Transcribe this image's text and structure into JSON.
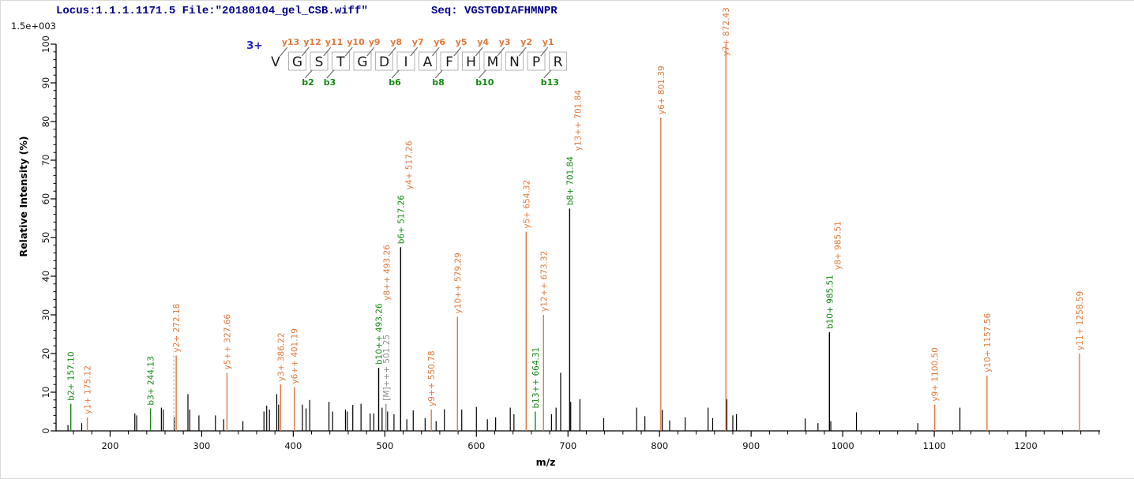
{
  "header": {
    "locus_file": "Locus:1.1.1.1171.5 File:\"20180104_gel_CSB.wiff\"",
    "seq_label": "Seq: VGSTGDIAFHMNPR",
    "max_intensity": "1.5e+003"
  },
  "sequence": {
    "charge": "3+",
    "residues": [
      "V",
      "G",
      "S",
      "T",
      "G",
      "D",
      "I",
      "A",
      "F",
      "H",
      "M",
      "N",
      "P",
      "R"
    ],
    "gaps": [
      {
        "y": "y13",
        "b": null
      },
      {
        "y": "y12",
        "b": "b2"
      },
      {
        "y": "y11",
        "b": "b3"
      },
      {
        "y": "y10",
        "b": null
      },
      {
        "y": "y9",
        "b": null
      },
      {
        "y": "y8",
        "b": "b6"
      },
      {
        "y": "y7",
        "b": null
      },
      {
        "y": "y6",
        "b": "b8"
      },
      {
        "y": "y5",
        "b": null
      },
      {
        "y": "y4",
        "b": "b10"
      },
      {
        "y": "y3",
        "b": null
      },
      {
        "y": "y2",
        "b": null
      },
      {
        "y": "y1",
        "b": "b13"
      }
    ]
  },
  "chart_data": {
    "type": "bar",
    "subtype": "ms2-fragment-spectrum",
    "title": "",
    "xlabel": "m/z",
    "ylabel": "Relative  Intensity (%)",
    "xlim": [
      141,
      1281
    ],
    "ylim": [
      0,
      100
    ],
    "grid": false,
    "x_major_ticks": [
      200,
      300,
      400,
      500,
      600,
      700,
      800,
      900,
      1000,
      1100,
      1200
    ],
    "x_minor_step": 20,
    "y_major_ticks": [
      0,
      10,
      20,
      30,
      40,
      50,
      60,
      70,
      80,
      90,
      100
    ],
    "y_minor_step": 2,
    "colors": {
      "y_ion": "#E0793B",
      "b_ion": "#138813",
      "neutral": "#8C8C8C",
      "peak": "#000000",
      "accent_blue": "#2323CE",
      "header_navy": "#00008B"
    },
    "peaks": [
      {
        "mz": 157.1,
        "intensity": 7.0,
        "line": "b_ion",
        "labels": [
          {
            "text": "b2+ 157.10",
            "color": "b_ion"
          }
        ]
      },
      {
        "mz": 175.12,
        "intensity": 3.5,
        "line": "y_ion",
        "labels": [
          {
            "text": "y1+ 175.12",
            "color": "y_ion"
          }
        ]
      },
      {
        "mz": 244.13,
        "intensity": 5.8,
        "line": "b_ion",
        "labels": [
          {
            "text": "b3+ 244.13",
            "color": "b_ion"
          }
        ]
      },
      {
        "mz": 272.18,
        "intensity": 19.5,
        "line": "y_ion",
        "dashed_marker": true,
        "labels": [
          {
            "text": "y2+ 272.18",
            "color": "y_ion"
          }
        ]
      },
      {
        "mz": 327.66,
        "intensity": 15.0,
        "line": "y_ion",
        "labels": [
          {
            "text": "y5++ 327.66",
            "color": "y_ion"
          }
        ]
      },
      {
        "mz": 386.22,
        "intensity": 12.0,
        "line": "y_ion",
        "labels": [
          {
            "text": "y3+ 386.22",
            "color": "y_ion"
          }
        ]
      },
      {
        "mz": 401.19,
        "intensity": 11.3,
        "line": "y_ion",
        "labels": [
          {
            "text": "y6++ 401.19",
            "color": "y_ion"
          }
        ]
      },
      {
        "mz": 493.26,
        "intensity": 16.3,
        "line": "peak",
        "labels": [
          {
            "text": "b10++ 493.26",
            "color": "b_ion"
          },
          {
            "text": "y8++ 493.26",
            "color": "y_ion"
          }
        ]
      },
      {
        "mz": 501.25,
        "intensity": 7.0,
        "line": "neutral",
        "labels": [
          {
            "text": "[M]+++ 501.25",
            "color": "neutral"
          }
        ]
      },
      {
        "mz": 517.26,
        "intensity": 47.5,
        "line": "peak",
        "labels": [
          {
            "text": "b6+ 517.26",
            "color": "b_ion"
          },
          {
            "text": "y4+ 517.26",
            "color": "y_ion"
          }
        ]
      },
      {
        "mz": 550.78,
        "intensity": 5.5,
        "line": "y_ion",
        "labels": [
          {
            "text": "y9++ 550.78",
            "color": "y_ion"
          }
        ]
      },
      {
        "mz": 579.29,
        "intensity": 29.5,
        "line": "y_ion",
        "labels": [
          {
            "text": "y10++ 579.29",
            "color": "y_ion"
          }
        ]
      },
      {
        "mz": 654.32,
        "intensity": 51.5,
        "line": "y_ion",
        "labels": [
          {
            "text": "y5+ 654.32",
            "color": "y_ion"
          }
        ]
      },
      {
        "mz": 664.31,
        "intensity": 5.0,
        "line": "b_ion",
        "labels": [
          {
            "text": "b13++ 664.31",
            "color": "b_ion"
          }
        ]
      },
      {
        "mz": 673.32,
        "intensity": 30.0,
        "line": "y_ion",
        "labels": [
          {
            "text": "y12++ 673.32",
            "color": "y_ion"
          }
        ]
      },
      {
        "mz": 701.84,
        "intensity": 57.5,
        "line": "peak",
        "labels": [
          {
            "text": "b8+ 701.84",
            "color": "b_ion"
          },
          {
            "text": "y13++ 701.84",
            "color": "y_ion"
          }
        ]
      },
      {
        "mz": 801.39,
        "intensity": 81.0,
        "line": "y_ion",
        "labels": [
          {
            "text": "y6+ 801.39",
            "color": "y_ion"
          }
        ]
      },
      {
        "mz": 872.43,
        "intensity": 100.0,
        "line": "y_ion",
        "labels": [
          {
            "text": "y7+ 872.43",
            "color": "y_ion"
          }
        ]
      },
      {
        "mz": 985.51,
        "intensity": 25.5,
        "line": "peak",
        "labels": [
          {
            "text": "b10+ 985.51",
            "color": "b_ion"
          },
          {
            "text": "y8+ 985.51",
            "color": "y_ion"
          }
        ]
      },
      {
        "mz": 1100.5,
        "intensity": 6.8,
        "line": "y_ion",
        "labels": [
          {
            "text": "y9+ 1100.50",
            "color": "y_ion"
          }
        ]
      },
      {
        "mz": 1157.56,
        "intensity": 14.3,
        "line": "y_ion",
        "labels": [
          {
            "text": "y10+ 1157.56",
            "color": "y_ion"
          }
        ]
      },
      {
        "mz": 1258.59,
        "intensity": 20.0,
        "line": "y_ion",
        "labels": [
          {
            "text": "y11+ 1258.59",
            "color": "y_ion"
          }
        ]
      }
    ],
    "background_peaks": [
      [
        154,
        1.5
      ],
      [
        169,
        2
      ],
      [
        227,
        4.5
      ],
      [
        229,
        4
      ],
      [
        256,
        6
      ],
      [
        258,
        5.5
      ],
      [
        270,
        3.5
      ],
      [
        285,
        9.5
      ],
      [
        287,
        5.5
      ],
      [
        297,
        4
      ],
      [
        315,
        4
      ],
      [
        324,
        3
      ],
      [
        345,
        2.5
      ],
      [
        368,
        5
      ],
      [
        371,
        6.5
      ],
      [
        374,
        5.5
      ],
      [
        382,
        9.5
      ],
      [
        384,
        6.8
      ],
      [
        410,
        6.8
      ],
      [
        414,
        5.8
      ],
      [
        418,
        8
      ],
      [
        439,
        7.5
      ],
      [
        443,
        5
      ],
      [
        457,
        5.5
      ],
      [
        459,
        5
      ],
      [
        465,
        6.7
      ],
      [
        474,
        7
      ],
      [
        484,
        4.5
      ],
      [
        488,
        4.5
      ],
      [
        497,
        6
      ],
      [
        503,
        5
      ],
      [
        510,
        4.3
      ],
      [
        524,
        3
      ],
      [
        531,
        5.3
      ],
      [
        544,
        3.3
      ],
      [
        556,
        2.5
      ],
      [
        565,
        5.6
      ],
      [
        584,
        5.5
      ],
      [
        600,
        6.2
      ],
      [
        612,
        3
      ],
      [
        621,
        3.5
      ],
      [
        637,
        6
      ],
      [
        641,
        4.3
      ],
      [
        682,
        4.3
      ],
      [
        687,
        6
      ],
      [
        692,
        15
      ],
      [
        703,
        7.5
      ],
      [
        713,
        8.2
      ],
      [
        739,
        3.3
      ],
      [
        775,
        6
      ],
      [
        784,
        3.8
      ],
      [
        803,
        5.4
      ],
      [
        811,
        2.7
      ],
      [
        828,
        3.5
      ],
      [
        853,
        6
      ],
      [
        858,
        3.3
      ],
      [
        873.5,
        8.2
      ],
      [
        880,
        4
      ],
      [
        884,
        4.3
      ],
      [
        959,
        3.2
      ],
      [
        973,
        2
      ],
      [
        987,
        2.5
      ],
      [
        1015,
        4.8
      ],
      [
        1082,
        2
      ],
      [
        1128,
        6
      ]
    ]
  }
}
